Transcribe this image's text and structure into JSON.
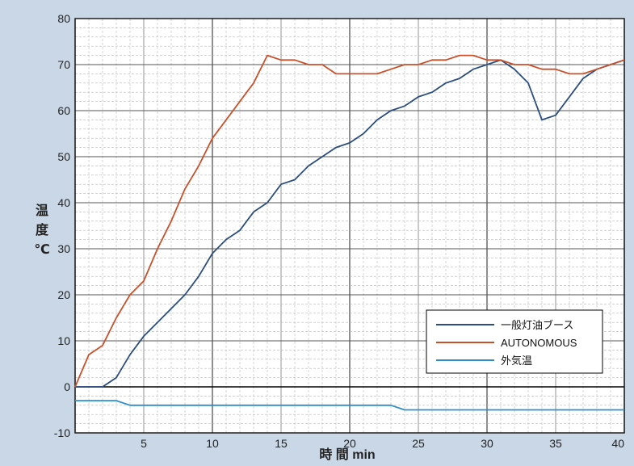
{
  "chart_data": {
    "type": "line",
    "title": "",
    "xlabel": "時 間 min",
    "ylabel": "温度 ℃",
    "ylabel_chars": [
      "温",
      "度",
      "℃"
    ],
    "xlim": [
      0,
      40
    ],
    "ylim": [
      -10,
      80
    ],
    "xticks": [
      5,
      10,
      15,
      20,
      25,
      30,
      35,
      40
    ],
    "yticks": [
      -10,
      0,
      10,
      20,
      30,
      40,
      50,
      60,
      70,
      80
    ],
    "grid": true,
    "legend_position": "lower-right",
    "series": [
      {
        "name": "一般灯油ブース",
        "color": "#2b4e7e",
        "x": [
          0,
          1,
          2,
          3,
          4,
          5,
          6,
          7,
          8,
          9,
          10,
          11,
          12,
          13,
          14,
          15,
          16,
          17,
          18,
          19,
          20,
          21,
          22,
          23,
          24,
          25,
          26,
          27,
          28,
          29,
          30,
          31,
          32,
          33,
          34,
          35,
          36,
          37,
          38,
          39,
          40
        ],
        "values": [
          0,
          0,
          0,
          2,
          7,
          11,
          14,
          17,
          20,
          24,
          29,
          32,
          34,
          38,
          40,
          44,
          45,
          48,
          50,
          52,
          53,
          55,
          58,
          60,
          61,
          63,
          64,
          66,
          67,
          69,
          70,
          71,
          69,
          66,
          58,
          59,
          63,
          67,
          69,
          70,
          71
        ]
      },
      {
        "name": "AUTONOMOUS",
        "color": "#c8512b",
        "x": [
          0,
          1,
          2,
          3,
          4,
          5,
          6,
          7,
          8,
          9,
          10,
          11,
          12,
          13,
          14,
          15,
          16,
          17,
          18,
          19,
          20,
          21,
          22,
          23,
          24,
          25,
          26,
          27,
          28,
          29,
          30,
          31,
          32,
          33,
          34,
          35,
          36,
          37,
          38,
          39,
          40
        ],
        "values": [
          0,
          7,
          9,
          15,
          20,
          23,
          30,
          36,
          43,
          48,
          54,
          58,
          62,
          66,
          72,
          71,
          71,
          70,
          70,
          68,
          68,
          68,
          68,
          69,
          70,
          70,
          71,
          71,
          72,
          72,
          71,
          71,
          70,
          70,
          69,
          69,
          68,
          68,
          69,
          70,
          71
        ]
      },
      {
        "name": "外気温",
        "color": "#2f8ec7",
        "x": [
          0,
          1,
          2,
          3,
          4,
          5,
          6,
          7,
          8,
          9,
          10,
          11,
          12,
          13,
          14,
          15,
          16,
          17,
          18,
          19,
          20,
          21,
          22,
          23,
          24,
          25,
          26,
          27,
          28,
          29,
          30,
          31,
          32,
          33,
          34,
          35,
          36,
          37,
          38,
          39,
          40
        ],
        "values": [
          -3,
          -3,
          -3,
          -3,
          -4,
          -4,
          -4,
          -4,
          -4,
          -4,
          -4,
          -4,
          -4,
          -4,
          -4,
          -4,
          -4,
          -4,
          -4,
          -4,
          -4,
          -4,
          -4,
          -4,
          -5,
          -5,
          -5,
          -5,
          -5,
          -5,
          -5,
          -5,
          -5,
          -5,
          -5,
          -5,
          -5,
          -5,
          -5,
          -5,
          -5
        ]
      }
    ]
  }
}
